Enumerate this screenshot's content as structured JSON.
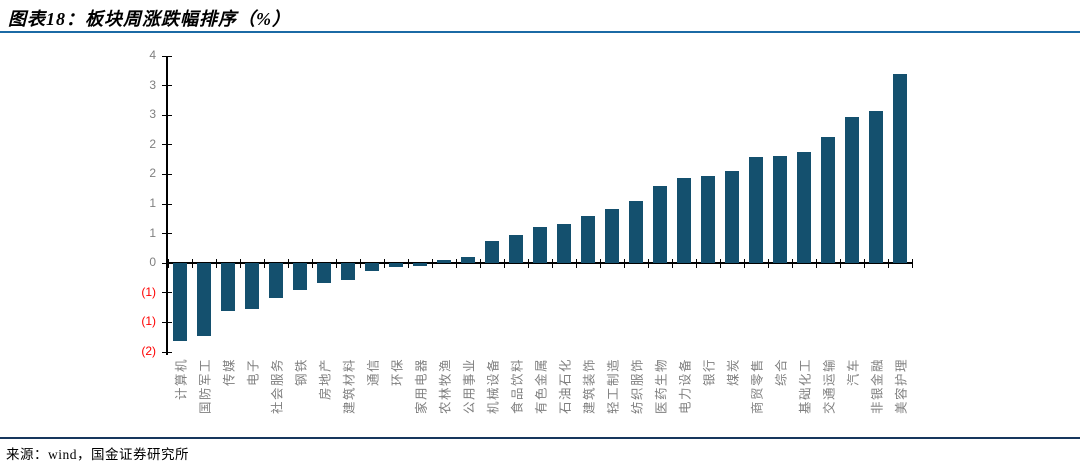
{
  "header": {
    "title": "图表18：板块周涨跌幅排序（%）"
  },
  "footer": {
    "source": "来源：wind，国金证券研究所"
  },
  "colors": {
    "bar": "#14506e",
    "title_rule": "#1b6aa5",
    "footer_rule": "#17365d",
    "axis": "#000000",
    "tick_label": "#7f7f7f",
    "negative_tick_label": "#ff0000",
    "category_label": "#7f7f7f"
  },
  "chart_data": {
    "type": "bar",
    "title": "板块周涨跌幅排序（%）",
    "ylabel": "",
    "xlabel": "",
    "grid": false,
    "legend": null,
    "ylim": [
      -1.5,
      3.5
    ],
    "y_ticks": [
      {
        "v": 3.5,
        "label": "4"
      },
      {
        "v": 3.0,
        "label": "3"
      },
      {
        "v": 2.5,
        "label": "3"
      },
      {
        "v": 2.0,
        "label": "2"
      },
      {
        "v": 1.5,
        "label": "2"
      },
      {
        "v": 1.0,
        "label": "1"
      },
      {
        "v": 0.5,
        "label": "1"
      },
      {
        "v": 0.0,
        "label": "0"
      },
      {
        "v": -0.5,
        "label": "(1)"
      },
      {
        "v": -1.0,
        "label": "(1)"
      },
      {
        "v": -1.5,
        "label": "(2)"
      }
    ],
    "categories": [
      "计算机",
      "国防军工",
      "传媒",
      "电子",
      "社会服务",
      "钢铁",
      "房地产",
      "建筑材料",
      "通信",
      "环保",
      "家用电器",
      "农林牧渔",
      "公用事业",
      "机械设备",
      "食品饮料",
      "有色金属",
      "石油石化",
      "建筑装饰",
      "轻工制造",
      "纺织服饰",
      "医药生物",
      "电力设备",
      "银行",
      "煤炭",
      "商贸零售",
      "综合",
      "基础化工",
      "交通运输",
      "汽车",
      "非银金融",
      "美容护理"
    ],
    "values": [
      -1.32,
      -1.23,
      -0.8,
      -0.78,
      -0.59,
      -0.45,
      -0.33,
      -0.29,
      -0.13,
      -0.06,
      -0.05,
      0.06,
      0.1,
      0.37,
      0.48,
      0.61,
      0.67,
      0.8,
      0.91,
      1.05,
      1.31,
      1.44,
      1.47,
      1.55,
      1.79,
      1.81,
      1.88,
      2.13,
      2.47,
      2.57,
      3.19
    ]
  }
}
